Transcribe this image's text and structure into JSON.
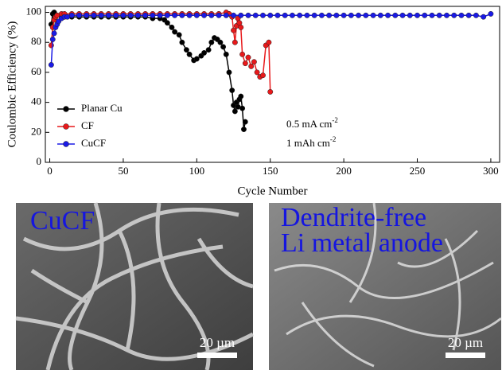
{
  "chart_data": {
    "type": "line",
    "ylabel": "Coulombic Efficiency (%)",
    "xlabel": "Cycle Number",
    "xlim": [
      -3,
      306
    ],
    "ylim": [
      0,
      104
    ],
    "xticks": [
      0,
      50,
      100,
      150,
      200,
      250,
      300
    ],
    "yticks": [
      0,
      20,
      40,
      60,
      80,
      100
    ],
    "legend": "left",
    "annotations": [
      {
        "text": "0.5 mA cm",
        "sup": "-2"
      },
      {
        "text": "1 mAh cm",
        "sup": "-2"
      }
    ],
    "series": [
      {
        "name": "Planar Cu",
        "color": "#000000",
        "x": [
          1,
          2,
          3,
          5,
          8,
          10,
          15,
          20,
          25,
          30,
          35,
          40,
          45,
          50,
          55,
          60,
          65,
          70,
          75,
          78,
          80,
          83,
          85,
          88,
          90,
          93,
          95,
          98,
          100,
          103,
          105,
          108,
          110,
          112,
          114,
          116,
          118,
          120,
          122,
          124,
          125,
          126,
          127,
          128,
          129,
          130,
          131,
          132,
          133
        ],
        "values": [
          92,
          99,
          100,
          98,
          97,
          97,
          97,
          97,
          97,
          97,
          97,
          97,
          97,
          97,
          97,
          97,
          97,
          96,
          96,
          95,
          93,
          90,
          87,
          85,
          80,
          75,
          72,
          68,
          69,
          71,
          73,
          75,
          80,
          83,
          82,
          80,
          77,
          72,
          60,
          48,
          38,
          34,
          40,
          37,
          42,
          44,
          36,
          22,
          27
        ]
      },
      {
        "name": "CF",
        "color": "#e8191b",
        "x": [
          1,
          2,
          3,
          4,
          5,
          8,
          10,
          15,
          20,
          25,
          30,
          35,
          40,
          45,
          50,
          55,
          60,
          65,
          70,
          75,
          80,
          85,
          90,
          95,
          100,
          105,
          110,
          115,
          120,
          122,
          124,
          125,
          126,
          127,
          128,
          129,
          130,
          131,
          133,
          135,
          137,
          139,
          141,
          143,
          145,
          147,
          149,
          150
        ],
        "values": [
          78,
          90,
          95,
          97,
          98,
          99,
          99,
          99,
          99,
          99,
          99,
          99,
          99,
          99,
          99,
          99,
          99,
          99,
          99,
          99,
          99,
          99,
          99,
          99,
          99,
          99,
          99,
          99,
          100,
          99,
          97,
          88,
          80,
          91,
          96,
          93,
          90,
          72,
          66,
          70,
          64,
          67,
          60,
          57,
          58,
          78,
          80,
          47
        ]
      },
      {
        "name": "CuCF",
        "color": "#1a1ae6",
        "x": [
          1,
          2,
          3,
          4,
          5,
          6,
          8,
          10,
          12,
          15,
          20,
          25,
          30,
          35,
          40,
          45,
          50,
          55,
          60,
          65,
          70,
          75,
          80,
          85,
          90,
          95,
          100,
          105,
          110,
          115,
          120,
          125,
          130,
          135,
          140,
          145,
          150,
          155,
          160,
          165,
          170,
          175,
          180,
          185,
          190,
          195,
          200,
          205,
          210,
          215,
          220,
          225,
          230,
          235,
          240,
          245,
          250,
          255,
          260,
          265,
          270,
          275,
          280,
          285,
          290,
          295,
          300
        ],
        "values": [
          65,
          82,
          86,
          90,
          92,
          94,
          96,
          97,
          97,
          98,
          98,
          98,
          98,
          98,
          98,
          98,
          98,
          98,
          98,
          98,
          98,
          98,
          98,
          98,
          98,
          98,
          98,
          98,
          98,
          98,
          98,
          98,
          98,
          98,
          98,
          98,
          98,
          98,
          98,
          98,
          98,
          98,
          98,
          98,
          98,
          98,
          98,
          98,
          98,
          98,
          98,
          98,
          98,
          98,
          98,
          98,
          98,
          98,
          98,
          98,
          98,
          98,
          98,
          98,
          98,
          97,
          99
        ]
      }
    ]
  },
  "images": [
    {
      "caption": [
        "CuCF"
      ],
      "scale_bar": "20 µm"
    },
    {
      "caption": [
        "Dendrite-free",
        "Li metal anode"
      ],
      "scale_bar": "20 µm"
    }
  ]
}
